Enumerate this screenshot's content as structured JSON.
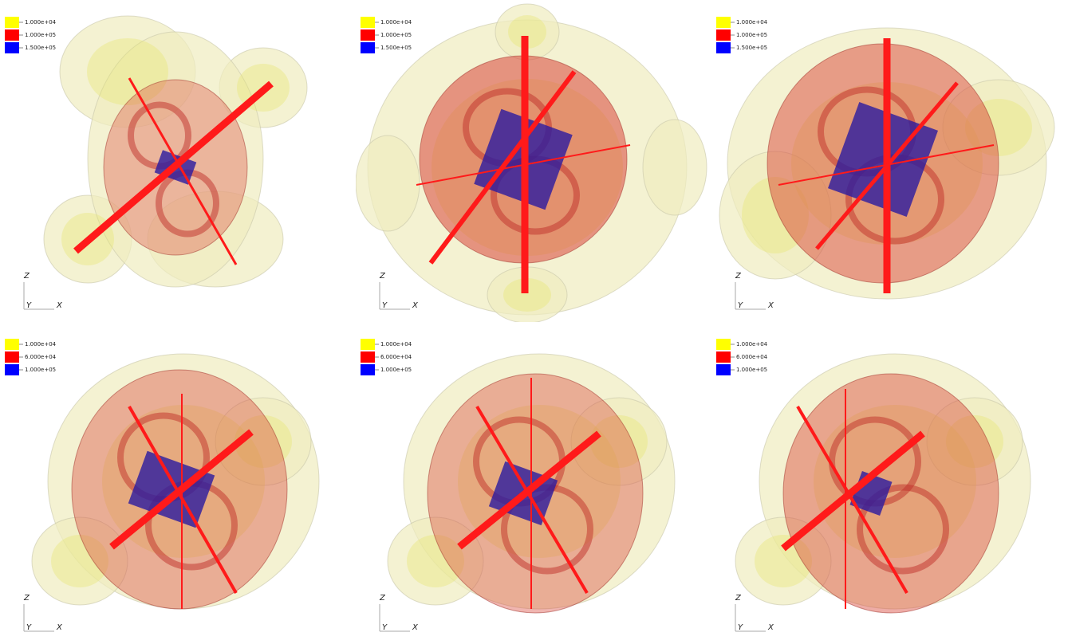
{
  "panels": [
    {
      "legend": [
        {
          "label": "1.000e+04",
          "color": "#ffff00"
        },
        {
          "label": "1.000e+05",
          "color": "#ff0000"
        },
        {
          "label": "1.500e+05",
          "color": "#0000ff"
        }
      ],
      "axes": {
        "z": "Z",
        "y": "Y",
        "x": "X"
      }
    },
    {
      "legend": [
        {
          "label": "1.000e+04",
          "color": "#ffff00"
        },
        {
          "label": "1.000e+05",
          "color": "#ff0000"
        },
        {
          "label": "1.500e+05",
          "color": "#0000ff"
        }
      ],
      "axes": {
        "z": "Z",
        "y": "Y",
        "x": "X"
      }
    },
    {
      "legend": [
        {
          "label": "1.000e+04",
          "color": "#ffff00"
        },
        {
          "label": "1.000e+05",
          "color": "#ff0000"
        },
        {
          "label": "1.500e+05",
          "color": "#0000ff"
        }
      ],
      "axes": {
        "z": "Z",
        "y": "Y",
        "x": "X"
      }
    },
    {
      "legend": [
        {
          "label": "1.000e+04",
          "color": "#ffff00"
        },
        {
          "label": "6.000e+04",
          "color": "#ff0000"
        },
        {
          "label": "1.000e+05",
          "color": "#0000ff"
        }
      ],
      "axes": {
        "z": "Z",
        "y": "Y",
        "x": "X"
      }
    },
    {
      "legend": [
        {
          "label": "1.000e+04",
          "color": "#ffff00"
        },
        {
          "label": "6.000e+04",
          "color": "#ff0000"
        },
        {
          "label": "1.000e+05",
          "color": "#0000ff"
        }
      ],
      "axes": {
        "z": "Z",
        "y": "Y",
        "x": "X"
      }
    },
    {
      "legend": [
        {
          "label": "1.000e+04",
          "color": "#ffff00"
        },
        {
          "label": "6.000e+04",
          "color": "#ff0000"
        },
        {
          "label": "1.000e+05",
          "color": "#0000ff"
        }
      ],
      "axes": {
        "z": "Z",
        "y": "Y",
        "x": "X"
      }
    }
  ]
}
